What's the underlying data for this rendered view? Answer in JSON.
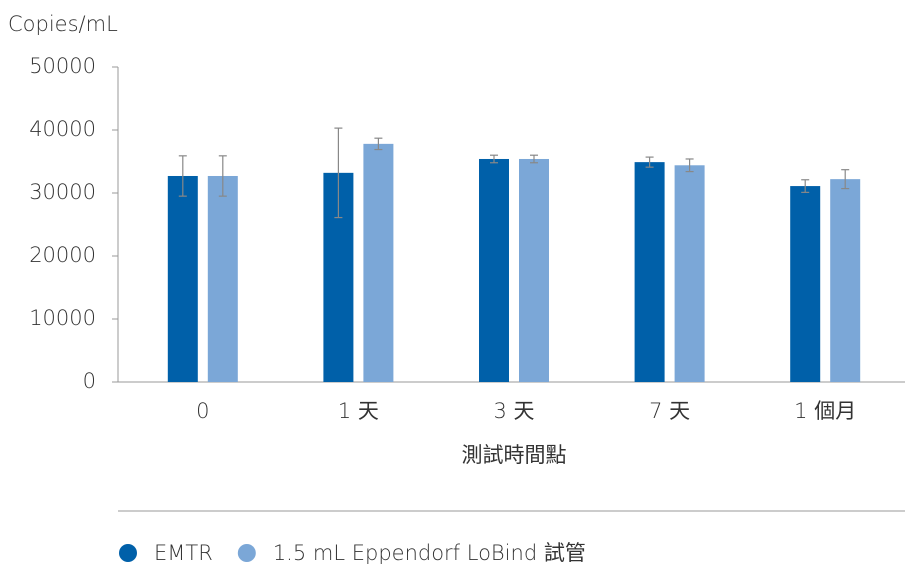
{
  "chart_data": {
    "type": "bar",
    "y_label": "Copies/mL",
    "x_label": "測試時間點",
    "categories": [
      "0",
      "1 天",
      "3 天",
      "7 天",
      "1 個月"
    ],
    "series": [
      {
        "name": "EMTR",
        "color": "#0060a9",
        "values": [
          32700,
          33200,
          35400,
          34900,
          31100
        ],
        "errors": [
          3200,
          7100,
          600,
          800,
          1000
        ]
      },
      {
        "name": "1.5 mL Eppendorf LoBind 試管",
        "color": "#7ba7d7",
        "values": [
          32700,
          37800,
          35400,
          34400,
          32200
        ],
        "errors": [
          3200,
          900,
          600,
          1000,
          1500
        ]
      }
    ],
    "ylim": [
      0,
      50000
    ],
    "yticks": [
      0,
      10000,
      20000,
      30000,
      40000,
      50000
    ],
    "grid": false
  }
}
